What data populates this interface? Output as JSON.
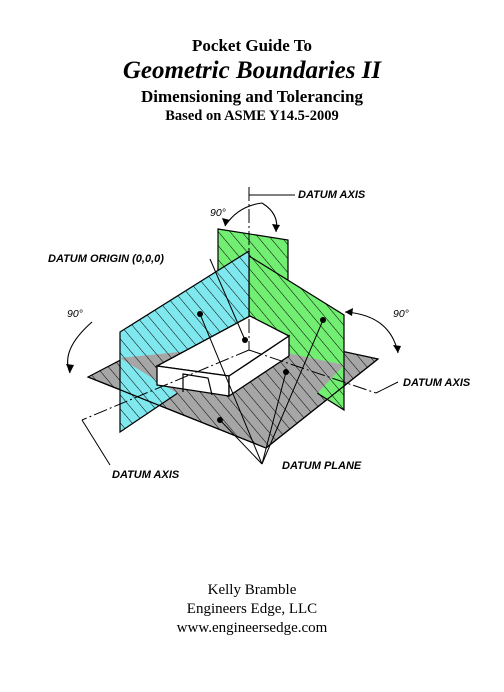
{
  "title": {
    "line1": "Pocket Guide To",
    "line2": "Geometric Boundaries II",
    "line3": "Dimensioning and Tolerancing",
    "line4": "Based on ASME Y14.5-2009"
  },
  "diagram": {
    "labels": {
      "datum_axis_top": "DATUM AXIS",
      "datum_axis_right": "DATUM AXIS",
      "datum_axis_left": "DATUM AXIS",
      "datum_origin": "DATUM ORIGIN (0,0,0)",
      "datum_plane": "DATUM PLANE",
      "angle_top": "90°",
      "angle_left": "90°",
      "angle_right": "90°"
    },
    "colors": {
      "cyan_plane": "#7fe8ee",
      "green_plane": "#72ee72",
      "gray_plane": "#a6a6a6",
      "line": "#000000"
    }
  },
  "credits": {
    "author": "Kelly Bramble",
    "company": "Engineers Edge, LLC",
    "website": "www.engineersedge.com"
  }
}
